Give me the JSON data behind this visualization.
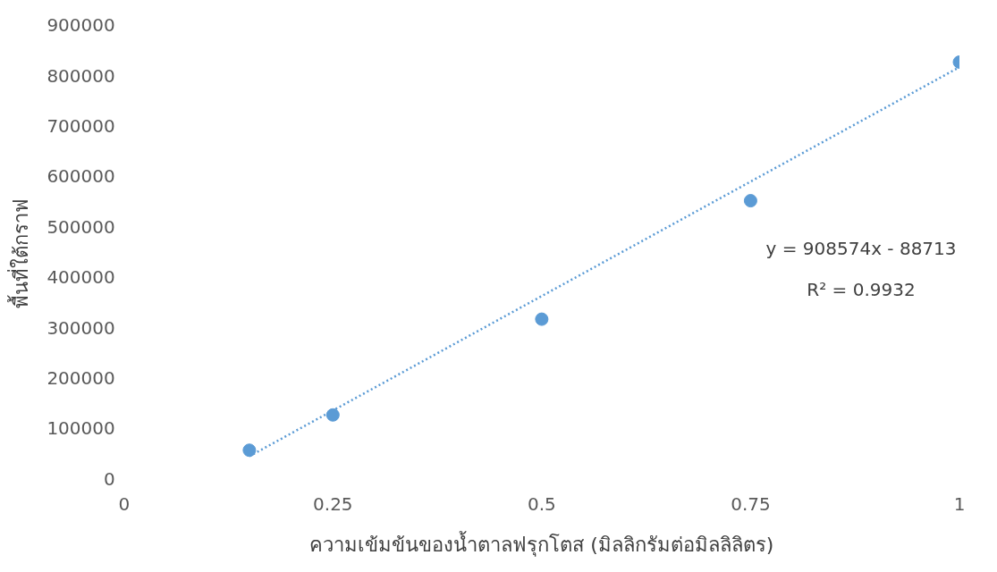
{
  "chart_data": {
    "type": "scatter",
    "xlabel": "ความเข้มข้นของน้ำตาลฟรุกโตส (มิลลิกรัมต่อมิลลิลิตร)",
    "ylabel": "พื้นที่ใต้กราฟ",
    "xlim": [
      0,
      1
    ],
    "xticks": [
      0,
      0.25,
      0.5,
      0.75,
      1
    ],
    "ylim": [
      0,
      900000
    ],
    "yticks": [
      0,
      100000,
      200000,
      300000,
      400000,
      500000,
      600000,
      700000,
      800000,
      900000
    ],
    "grid": false,
    "legend": false,
    "series": [
      {
        "marker": "circle",
        "color": "#5b9bd5",
        "x": [
          0.15,
          0.25,
          0.5,
          0.75,
          1
        ],
        "values": [
          60000,
          130000,
          320000,
          555000,
          830000
        ]
      },
      {
        "type": "line",
        "marker": "none",
        "color": "#5b9bd5",
        "line_style": "dotted",
        "x": [
          0.15,
          1
        ],
        "values": [
          48000,
          820000
        ]
      }
    ],
    "annotations": [
      "y = 908574x - 88713",
      "R² = 0.9932"
    ]
  }
}
